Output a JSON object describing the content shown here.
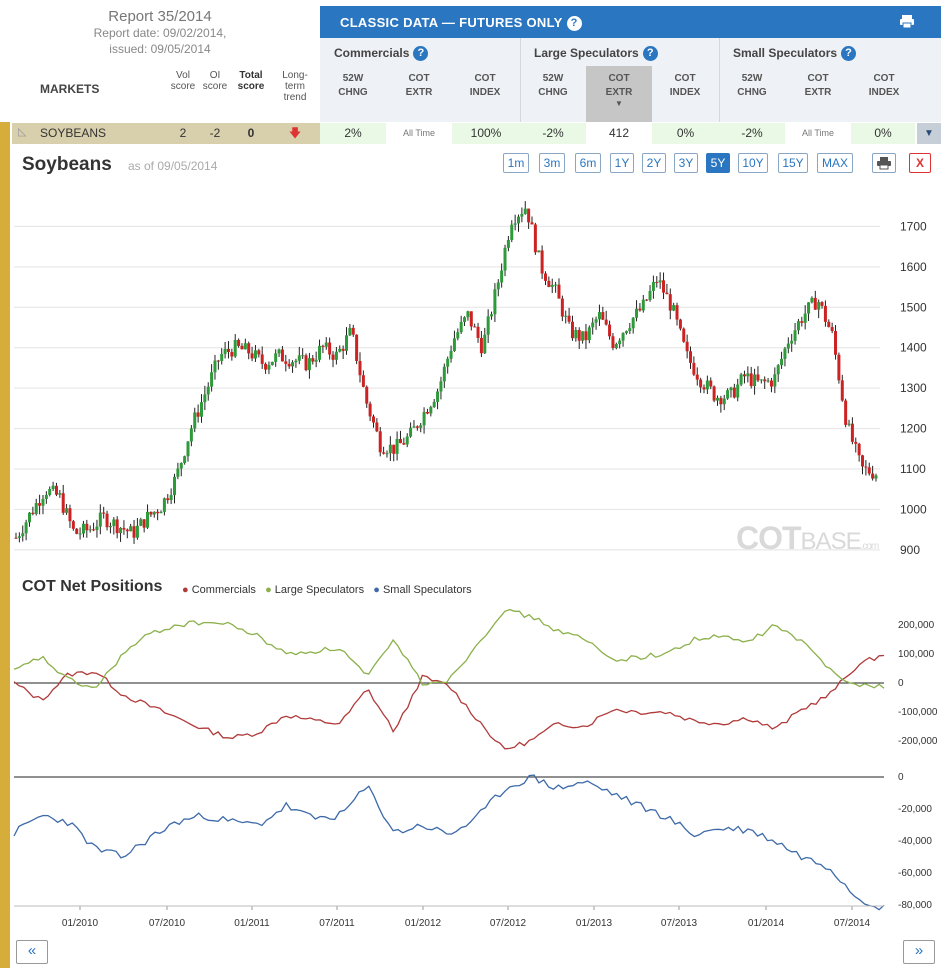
{
  "report": {
    "title": "Report 35/2014",
    "date_line": "Report date: 09/02/2014,",
    "issued_line": "issued: 09/05/2014"
  },
  "markets_label": "MARKETS",
  "score_headers": {
    "vol": [
      "Vol",
      "score"
    ],
    "oi": [
      "OI",
      "score"
    ],
    "total": [
      "Total",
      "score"
    ],
    "trend": [
      "Long-",
      "term",
      "trend"
    ]
  },
  "classic_title": "CLASSIC DATA — FUTURES ONLY",
  "groups": [
    {
      "name": "Commercials",
      "cols": [
        [
          "52W",
          "CHNG"
        ],
        [
          "COT",
          "EXTR"
        ],
        [
          "COT",
          "INDEX"
        ]
      ]
    },
    {
      "name": "Large Speculators",
      "cols": [
        [
          "52W",
          "CHNG"
        ],
        [
          "COT",
          "EXTR"
        ],
        [
          "COT",
          "INDEX"
        ]
      ]
    },
    {
      "name": "Small Speculators",
      "cols": [
        [
          "52W",
          "CHNG"
        ],
        [
          "COT",
          "EXTR"
        ],
        [
          "COT",
          "INDEX"
        ]
      ]
    }
  ],
  "row": {
    "market": "SOYBEANS",
    "vol": "2",
    "oi": "-2",
    "total": "0",
    "values": [
      "2%",
      "All Time",
      "100%",
      "-2%",
      "412",
      "0%",
      "-2%",
      "All Time",
      "0%"
    ]
  },
  "chart_title": "Soybeans",
  "as_of": "as of 09/05/2014",
  "timeframes": [
    "1m",
    "3m",
    "6m",
    "1Y",
    "2Y",
    "3Y",
    "5Y",
    "10Y",
    "15Y",
    "MAX"
  ],
  "active_timeframe": "5Y",
  "close_label": "X",
  "watermark": {
    "bold": "COT",
    "light": "BASE",
    "suffix": ".com"
  },
  "cot_title": "COT Net Positions",
  "colors": {
    "commercials": "#b03a3a",
    "large": "#8bb04a",
    "small": "#3d6aa8",
    "accent": "#2a76c1",
    "up": "#2e9a3a",
    "down": "#cc2222"
  },
  "chart_data": [
    {
      "type": "candlestick",
      "title": "Soybeans",
      "x_ticks": [
        "01/2010",
        "07/2010",
        "01/2011",
        "07/2011",
        "01/2012",
        "07/2012",
        "01/2013",
        "07/2013",
        "01/2014",
        "07/2014"
      ],
      "y_ticks": [
        900,
        1000,
        1100,
        1200,
        1300,
        1400,
        1500,
        1600,
        1700
      ],
      "ylim": [
        870,
        1790
      ],
      "series": [
        {
          "x": [
            "10/2009",
            "11/2009",
            "12/2009",
            "01/2010",
            "02/2010",
            "03/2010",
            "04/2010",
            "05/2010",
            "06/2010",
            "07/2010",
            "08/2010",
            "09/2010",
            "10/2010",
            "11/2010",
            "12/2010",
            "01/2011",
            "02/2011",
            "03/2011",
            "04/2011",
            "05/2011",
            "06/2011",
            "07/2011",
            "08/2011",
            "09/2011",
            "10/2011",
            "11/2011",
            "12/2011",
            "01/2012",
            "02/2012",
            "03/2012",
            "04/2012",
            "05/2012",
            "06/2012",
            "07/2012",
            "08/2012",
            "09/2012",
            "10/2012",
            "11/2012",
            "12/2012",
            "01/2013",
            "02/2013",
            "03/2013",
            "04/2013",
            "05/2013",
            "06/2013",
            "07/2013",
            "08/2013",
            "09/2013",
            "10/2013",
            "11/2013",
            "12/2013",
            "01/2014",
            "02/2014",
            "03/2014",
            "04/2014",
            "05/2014",
            "06/2014",
            "07/2014",
            "08/2014",
            "09/2014"
          ],
          "close": [
            930,
            990,
            1050,
            1030,
            940,
            950,
            980,
            960,
            940,
            980,
            1010,
            1080,
            1200,
            1290,
            1380,
            1400,
            1390,
            1360,
            1380,
            1370,
            1360,
            1400,
            1380,
            1440,
            1270,
            1160,
            1150,
            1180,
            1240,
            1300,
            1420,
            1480,
            1400,
            1550,
            1720,
            1750,
            1600,
            1540,
            1440,
            1420,
            1480,
            1410,
            1460,
            1500,
            1570,
            1500,
            1380,
            1320,
            1280,
            1280,
            1330,
            1310,
            1320,
            1420,
            1480,
            1520,
            1430,
            1210,
            1100,
            1090
          ]
        }
      ]
    },
    {
      "type": "line",
      "title": "COT Net Positions",
      "x_ticks": [
        "01/2010",
        "07/2010",
        "01/2011",
        "07/2011",
        "01/2012",
        "07/2012",
        "01/2013",
        "07/2013",
        "01/2014",
        "07/2014"
      ],
      "y_ticks_top": [
        -200000,
        -100000,
        0,
        100000,
        200000
      ],
      "y_ticks_bottom": [
        -80000,
        -60000,
        -40000,
        -20000,
        0
      ],
      "series": [
        {
          "name": "Commercials",
          "values": [
            0,
            -60000,
            30000,
            40000,
            -40000,
            -80000,
            -120000,
            -160000,
            -190000,
            -170000,
            -110000,
            -130000,
            -140000,
            -20000,
            -170000,
            20000,
            -10000,
            -120000,
            -230000,
            -200000,
            -140000,
            -150000,
            -90000,
            -100000,
            -100000,
            -130000,
            -140000,
            -120000,
            -160000,
            -90000,
            -40000,
            60000,
            100000
          ]
        },
        {
          "name": "Large Speculators",
          "values": [
            40000,
            90000,
            10000,
            -20000,
            100000,
            170000,
            200000,
            210000,
            200000,
            160000,
            100000,
            110000,
            120000,
            20000,
            150000,
            0,
            10000,
            130000,
            250000,
            230000,
            180000,
            150000,
            80000,
            90000,
            100000,
            150000,
            160000,
            140000,
            200000,
            140000,
            50000,
            -10000,
            -10000
          ]
        },
        {
          "name": "Small Speculators",
          "values": [
            -35000,
            -24000,
            -28000,
            -45000,
            -50000,
            -38000,
            -28000,
            -24000,
            -28000,
            -30000,
            -18000,
            -26000,
            -24000,
            -6000,
            -35000,
            -30000,
            -36000,
            -26000,
            -8000,
            0,
            -7000,
            -3000,
            -10000,
            -18000,
            -25000,
            -36000,
            -32000,
            -33000,
            -40000,
            -50000,
            -56000,
            -75000,
            -82000
          ]
        }
      ]
    }
  ]
}
